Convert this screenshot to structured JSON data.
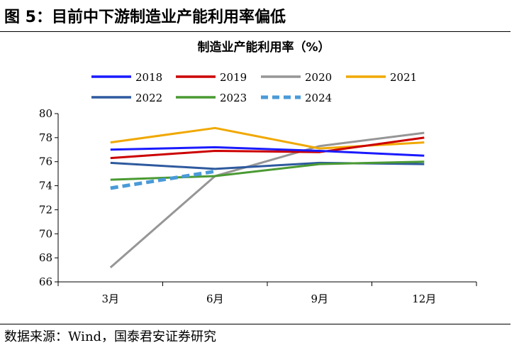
{
  "figure": {
    "title": "图 5：目前中下游制造业产能利用率偏低",
    "source": "数据来源：Wind，国泰君安证券研究"
  },
  "chart_data": {
    "type": "line",
    "title": "制造业产能利用率（%）",
    "xlabel": "",
    "ylabel": "",
    "categories": [
      "3月",
      "6月",
      "9月",
      "12月"
    ],
    "ylim": [
      66,
      80
    ],
    "yticks": [
      66,
      68,
      70,
      72,
      74,
      76,
      78,
      80
    ],
    "grid": false,
    "legend_position": "top",
    "series": [
      {
        "name": "2018",
        "color": "#1a1aff",
        "values": [
          77.0,
          77.2,
          76.9,
          76.5
        ]
      },
      {
        "name": "2019",
        "color": "#cc0000",
        "values": [
          76.3,
          76.9,
          76.8,
          78.0
        ]
      },
      {
        "name": "2020",
        "color": "#969696",
        "values": [
          67.2,
          74.8,
          77.3,
          78.4
        ]
      },
      {
        "name": "2021",
        "color": "#f0a800",
        "values": [
          77.6,
          78.8,
          77.1,
          77.6
        ]
      },
      {
        "name": "2022",
        "color": "#2e5a9e",
        "values": [
          75.9,
          75.4,
          75.9,
          75.8
        ]
      },
      {
        "name": "2023",
        "color": "#4a9a32",
        "values": [
          74.5,
          74.8,
          75.8,
          76.0
        ]
      },
      {
        "name": "2024",
        "color": "#4a9ad8",
        "dashed": true,
        "values": [
          73.8,
          75.2,
          null,
          null
        ]
      }
    ]
  }
}
